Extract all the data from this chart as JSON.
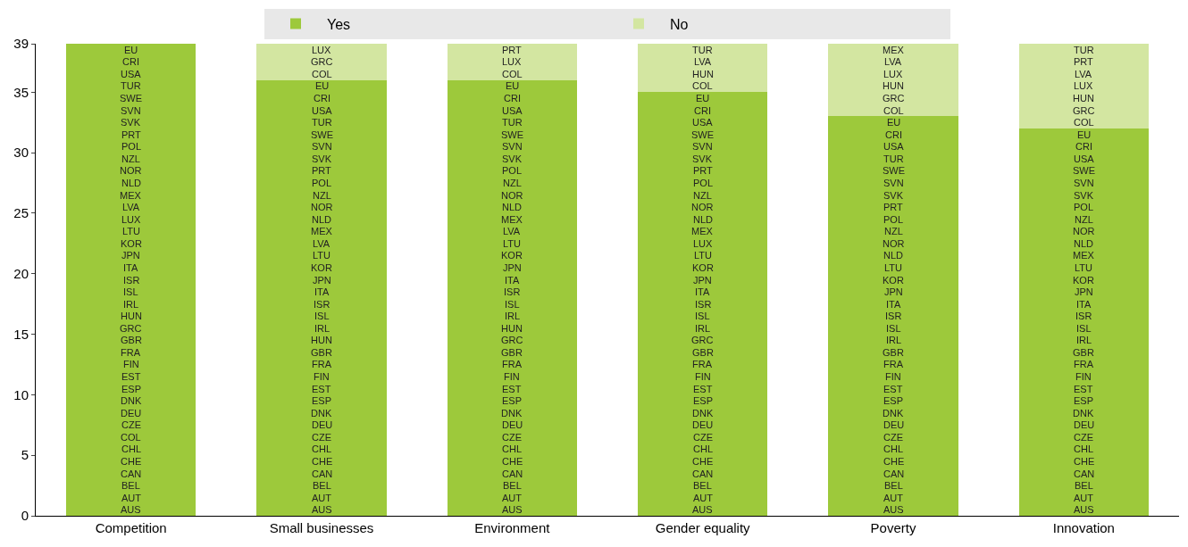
{
  "chart_data": {
    "type": "bar",
    "stacked": true,
    "categories": [
      "Competition",
      "Small businesses",
      "Environment",
      "Gender equality",
      "Poverty",
      "Innovation"
    ],
    "series": [
      {
        "name": "Yes",
        "color": "#9dc93b",
        "values": [
          39,
          36,
          36,
          35,
          33,
          32
        ]
      },
      {
        "name": "No",
        "color": "#d3e6a1",
        "values": [
          0,
          3,
          3,
          4,
          6,
          7
        ]
      }
    ],
    "ylim": [
      0,
      39
    ],
    "yticks": [
      0,
      5,
      10,
      15,
      20,
      25,
      30,
      35,
      39
    ],
    "grid": false,
    "legend": "top",
    "annotations": [
      "AUS",
      "AUT",
      "BEL",
      "CAN",
      "CHE",
      "CHL",
      "COL",
      "CZE",
      "DEU",
      "DNK",
      "ESP",
      "EST",
      "FIN",
      "FRA",
      "GBR",
      "GRC",
      "HUN",
      "IRL",
      "ISL",
      "ISR",
      "ITA",
      "JPN",
      "KOR",
      "LTU",
      "LUX",
      "LVA",
      "MEX",
      "NLD",
      "NOR",
      "NZL",
      "POL",
      "PRT",
      "SVK",
      "SVN",
      "SWE",
      "TUR",
      "USA",
      "CRI",
      "EU",
      "AUS",
      "AUT",
      "BEL",
      "CAN",
      "CHE",
      "CHL",
      "CZE",
      "DEU",
      "DNK",
      "ESP",
      "EST",
      "FIN",
      "FRA",
      "GBR",
      "HUN",
      "IRL",
      "ISL",
      "ISR",
      "ITA",
      "JPN",
      "KOR",
      "LTU",
      "LVA",
      "MEX",
      "NLD",
      "NOR",
      "NZL",
      "POL",
      "PRT",
      "SVK",
      "SVN",
      "SWE",
      "TUR",
      "USA",
      "CRI",
      "EU",
      "COL",
      "GRC",
      "LUX",
      "AUS",
      "AUT",
      "BEL",
      "CAN",
      "CHE",
      "CHL",
      "CZE",
      "DEU",
      "DNK",
      "ESP",
      "EST",
      "FIN",
      "FRA",
      "GBR",
      "GRC",
      "HUN",
      "IRL",
      "ISL",
      "ISR",
      "ITA",
      "JPN",
      "KOR",
      "LTU",
      "LVA",
      "MEX",
      "NLD",
      "NOR",
      "NZL",
      "POL",
      "SVK",
      "SVN",
      "SWE",
      "TUR",
      "USA",
      "CRI",
      "EU",
      "COL",
      "LUX",
      "PRT",
      "AUS",
      "AUT",
      "BEL",
      "CAN",
      "CHE",
      "CHL",
      "CZE",
      "DEU",
      "DNK",
      "ESP",
      "EST",
      "FIN",
      "FRA",
      "GBR",
      "GRC",
      "IRL",
      "ISL",
      "ISR",
      "ITA",
      "JPN",
      "KOR",
      "LTU",
      "LUX",
      "MEX",
      "NLD",
      "NOR",
      "NZL",
      "POL",
      "PRT",
      "SVK",
      "SVN",
      "SWE",
      "USA",
      "CRI",
      "EU",
      "COL",
      "HUN",
      "LVA",
      "TUR",
      "AUS",
      "AUT",
      "BEL",
      "CAN",
      "CHE",
      "CHL",
      "CZE",
      "DEU",
      "DNK",
      "ESP",
      "EST",
      "FIN",
      "FRA",
      "GBR",
      "IRL",
      "ISL",
      "ISR",
      "ITA",
      "JPN",
      "KOR",
      "LTU",
      "NLD",
      "NOR",
      "NZL",
      "POL",
      "PRT",
      "SVK",
      "SVN",
      "SWE",
      "TUR",
      "USA",
      "CRI",
      "EU",
      "COL",
      "GRC",
      "HUN",
      "LUX",
      "LVA",
      "MEX",
      "AUS",
      "AUT",
      "BEL",
      "CAN",
      "CHE",
      "CHL",
      "CZE",
      "DEU",
      "DNK",
      "ESP",
      "EST",
      "FIN",
      "FRA",
      "GBR",
      "IRL",
      "ISL",
      "ISR",
      "ITA",
      "JPN",
      "KOR",
      "LTU",
      "MEX",
      "NLD",
      "NOR",
      "NZL",
      "POL",
      "SVK",
      "SVN",
      "SWE",
      "USA",
      "CRI",
      "EU",
      "COL",
      "GRC",
      "HUN",
      "LUX",
      "LVA",
      "PRT",
      "TUR"
    ]
  }
}
